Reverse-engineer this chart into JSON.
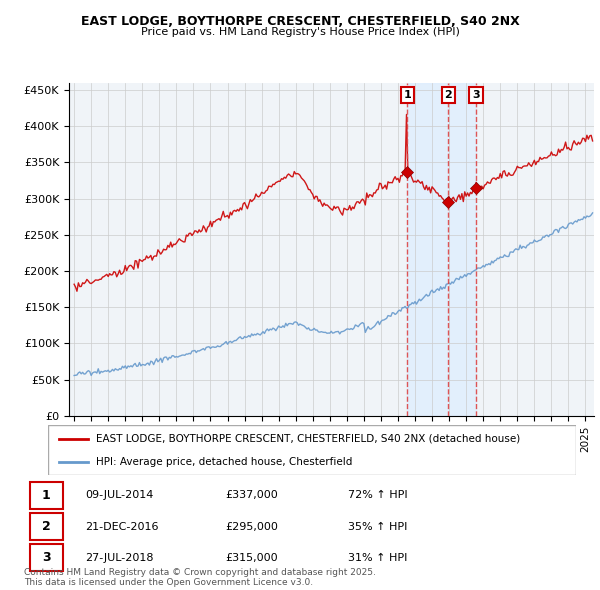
{
  "title": "EAST LODGE, BOYTHORPE CRESCENT, CHESTERFIELD, S40 2NX",
  "subtitle": "Price paid vs. HM Land Registry's House Price Index (HPI)",
  "ylim": [
    0,
    460000
  ],
  "yticks": [
    0,
    50000,
    100000,
    150000,
    200000,
    250000,
    300000,
    350000,
    400000,
    450000
  ],
  "ytick_labels": [
    "£0",
    "£50K",
    "£100K",
    "£150K",
    "£200K",
    "£250K",
    "£300K",
    "£350K",
    "£400K",
    "£450K"
  ],
  "legend_entry1": "EAST LODGE, BOYTHORPE CRESCENT, CHESTERFIELD, S40 2NX (detached house)",
  "legend_entry2": "HPI: Average price, detached house, Chesterfield",
  "footer": "Contains HM Land Registry data © Crown copyright and database right 2025.\nThis data is licensed under the Open Government Licence v3.0.",
  "sale1_label": "1",
  "sale1_date": "09-JUL-2014",
  "sale1_price": "£337,000",
  "sale1_hpi": "72% ↑ HPI",
  "sale1_time": 2014.54,
  "sale1_value": 337000,
  "sale2_label": "2",
  "sale2_date": "21-DEC-2016",
  "sale2_price": "£295,000",
  "sale2_hpi": "35% ↑ HPI",
  "sale2_time": 2016.96,
  "sale2_value": 295000,
  "sale3_label": "3",
  "sale3_date": "27-JUL-2018",
  "sale3_price": "£315,000",
  "sale3_hpi": "31% ↑ HPI",
  "sale3_time": 2018.58,
  "sale3_value": 315000,
  "red_line_color": "#cc0000",
  "blue_line_color": "#6699cc",
  "vline_color": "#dd4444",
  "shade_color": "#ddeeff",
  "bg_color": "#ffffff",
  "grid_color": "#cccccc",
  "chart_bg": "#f0f4f8"
}
